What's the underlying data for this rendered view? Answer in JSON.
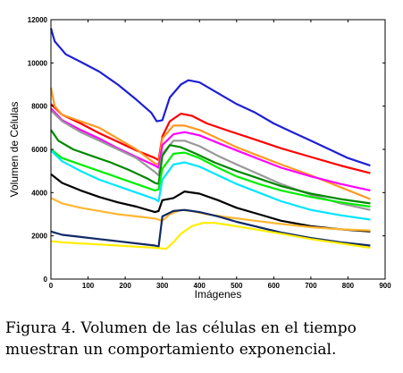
{
  "chart_data": {
    "type": "line",
    "title": "",
    "xlabel": "Imágenes",
    "ylabel": "Volumen de Células",
    "xlim": [
      0,
      900
    ],
    "ylim": [
      0,
      12000
    ],
    "xticks": [
      0,
      100,
      200,
      300,
      400,
      500,
      600,
      700,
      800,
      900
    ],
    "yticks": [
      0,
      2000,
      4000,
      6000,
      8000,
      10000,
      12000
    ],
    "xtick_labels": [
      "0",
      "100",
      "200",
      "300",
      "400",
      "500",
      "600",
      "700",
      "800",
      "900"
    ],
    "ytick_labels": [
      "0",
      "2000",
      "4000",
      "6000",
      "8000",
      "10000",
      "12000"
    ],
    "grid": false,
    "series": [
      {
        "color": "#1f1fd6",
        "x": [
          0,
          10,
          40,
          80,
          130,
          180,
          230,
          270,
          285,
          300,
          320,
          350,
          370,
          400,
          450,
          500,
          550,
          600,
          650,
          700,
          750,
          800,
          860
        ],
        "y": [
          11600,
          11000,
          10400,
          10050,
          9600,
          9000,
          8300,
          7700,
          7300,
          7350,
          8400,
          9000,
          9200,
          9100,
          8600,
          8100,
          7700,
          7200,
          6800,
          6400,
          6000,
          5600,
          5250
        ]
      },
      {
        "color": "#ff0000",
        "x": [
          0,
          30,
          80,
          130,
          180,
          230,
          280,
          290,
          300,
          320,
          350,
          380,
          420,
          480,
          550,
          620,
          700,
          780,
          860
        ],
        "y": [
          8100,
          7600,
          7200,
          6750,
          6350,
          5950,
          5600,
          5500,
          6600,
          7300,
          7650,
          7550,
          7200,
          6850,
          6450,
          6050,
          5650,
          5250,
          4900
        ]
      },
      {
        "color": "#ff9922",
        "x": [
          0,
          10,
          30,
          80,
          130,
          180,
          230,
          280,
          290,
          300,
          330,
          360,
          400,
          450,
          500,
          560,
          620,
          700,
          780,
          860
        ],
        "y": [
          8850,
          8000,
          7600,
          7300,
          7000,
          6500,
          6000,
          5350,
          5300,
          6500,
          7100,
          7100,
          6900,
          6500,
          6100,
          5700,
          5300,
          4800,
          4250,
          3700
        ]
      },
      {
        "color": "#ff00ff",
        "x": [
          0,
          30,
          80,
          130,
          180,
          230,
          280,
          290,
          300,
          330,
          360,
          400,
          450,
          500,
          560,
          620,
          700,
          780,
          860
        ],
        "y": [
          7900,
          7350,
          6900,
          6500,
          6050,
          5650,
          5250,
          5150,
          6200,
          6700,
          6800,
          6650,
          6300,
          5950,
          5550,
          5150,
          4750,
          4400,
          4100
        ]
      },
      {
        "color": "#999999",
        "x": [
          0,
          30,
          80,
          130,
          180,
          230,
          280,
          290,
          300,
          330,
          360,
          400,
          450,
          500,
          560,
          620,
          700,
          780,
          860
        ],
        "y": [
          7800,
          7300,
          6800,
          6400,
          6000,
          5600,
          4950,
          4800,
          5800,
          6400,
          6400,
          6150,
          5700,
          5300,
          4850,
          4400,
          3900,
          3500,
          3200
        ]
      },
      {
        "color": "#008800",
        "x": [
          0,
          20,
          60,
          110,
          160,
          210,
          260,
          280,
          290,
          300,
          320,
          350,
          390,
          440,
          500,
          560,
          620,
          700,
          780,
          860
        ],
        "y": [
          6900,
          6400,
          6000,
          5700,
          5400,
          5050,
          4650,
          4450,
          4400,
          5700,
          6200,
          6100,
          5800,
          5400,
          5000,
          4650,
          4300,
          3950,
          3700,
          3500
        ]
      },
      {
        "color": "#00ee00",
        "x": [
          0,
          30,
          80,
          130,
          180,
          230,
          280,
          290,
          300,
          330,
          360,
          400,
          450,
          500,
          560,
          620,
          700,
          780,
          860
        ],
        "y": [
          6000,
          5600,
          5300,
          5000,
          4700,
          4400,
          4100,
          4150,
          5100,
          5800,
          5850,
          5600,
          5150,
          4750,
          4400,
          4100,
          3800,
          3550,
          3350
        ]
      },
      {
        "color": "#00e5ff",
        "x": [
          0,
          30,
          80,
          130,
          180,
          230,
          280,
          290,
          300,
          330,
          360,
          400,
          450,
          500,
          560,
          620,
          700,
          780,
          860
        ],
        "y": [
          5950,
          5450,
          5000,
          4600,
          4300,
          4000,
          3700,
          3600,
          4600,
          5300,
          5400,
          5200,
          4800,
          4400,
          4000,
          3600,
          3200,
          2950,
          2750
        ]
      },
      {
        "color": "#000000",
        "x": [
          0,
          30,
          80,
          130,
          180,
          230,
          280,
          290,
          300,
          330,
          360,
          400,
          450,
          500,
          560,
          620,
          700,
          780,
          860
        ],
        "y": [
          4850,
          4450,
          4100,
          3800,
          3550,
          3350,
          3100,
          3150,
          3650,
          3750,
          4050,
          3950,
          3650,
          3300,
          3000,
          2700,
          2450,
          2300,
          2200
        ]
      },
      {
        "color": "#ffb733",
        "x": [
          0,
          30,
          80,
          130,
          180,
          230,
          280,
          300,
          320,
          350,
          380,
          420,
          480,
          550,
          620,
          700,
          780,
          860
        ],
        "y": [
          3750,
          3500,
          3300,
          3150,
          3000,
          2900,
          2800,
          2700,
          3000,
          3200,
          3150,
          3000,
          2850,
          2700,
          2550,
          2400,
          2300,
          2250
        ]
      },
      {
        "color": "#112a66",
        "x": [
          0,
          30,
          80,
          130,
          180,
          230,
          280,
          290,
          300,
          330,
          360,
          400,
          450,
          500,
          560,
          620,
          700,
          780,
          860
        ],
        "y": [
          2200,
          2050,
          1950,
          1850,
          1750,
          1650,
          1550,
          1500,
          2900,
          3150,
          3200,
          3100,
          2900,
          2650,
          2400,
          2150,
          1900,
          1700,
          1550
        ]
      },
      {
        "color": "#ffee00",
        "x": [
          0,
          30,
          80,
          130,
          180,
          230,
          280,
          310,
          330,
          350,
          380,
          410,
          440,
          480,
          550,
          620,
          700,
          780,
          860
        ],
        "y": [
          1750,
          1700,
          1650,
          1600,
          1550,
          1500,
          1450,
          1400,
          1700,
          2100,
          2450,
          2600,
          2600,
          2500,
          2300,
          2100,
          1850,
          1650,
          1450
        ]
      }
    ]
  },
  "caption": {
    "line1": "Figura 4.  Volumen de las células en el tiempo",
    "line2": "muestran un comportamiento exponencial."
  }
}
